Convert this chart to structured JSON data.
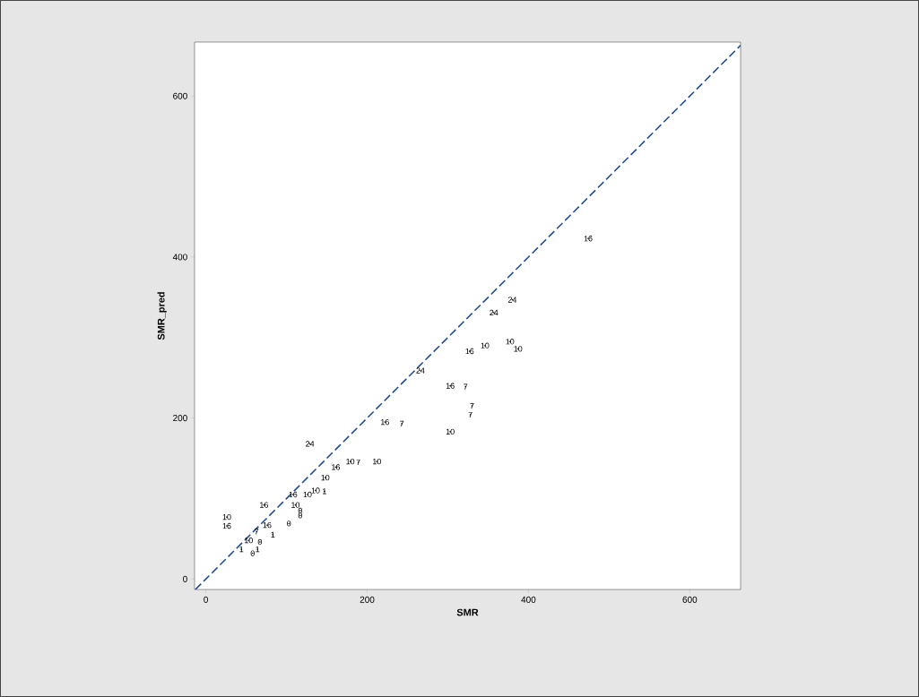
{
  "chart_data": {
    "type": "scatter",
    "xlabel": "SMR",
    "ylabel": "SMR_pred",
    "xlim": [
      -14,
      663
    ],
    "ylim": [
      -13,
      667
    ],
    "xticks": [
      0,
      200,
      400,
      600
    ],
    "yticks": [
      0,
      200,
      400,
      600
    ],
    "grid": false,
    "series": [
      {
        "type": "line",
        "color": "#1f4e96",
        "line_style": "dashed",
        "x": [
          -13,
          663
        ],
        "values": [
          -13,
          663
        ]
      },
      {
        "name": "16",
        "color": "#000000",
        "x": [
          474,
          327,
          303,
          222,
          161,
          108,
          72,
          26,
          76
        ],
        "values": [
          423,
          283,
          240,
          195,
          139,
          105,
          92,
          66,
          67
        ]
      },
      {
        "name": "24",
        "color": "#000000",
        "x": [
          380,
          357,
          266,
          129
        ],
        "values": [
          347,
          331,
          259,
          168
        ]
      },
      {
        "name": "10",
        "color": "#000000",
        "x": [
          346,
          377,
          387,
          303,
          179,
          212,
          148,
          126,
          136,
          111,
          26,
          53
        ],
        "values": [
          290,
          295,
          286,
          183,
          146,
          146,
          126,
          105,
          110,
          92,
          77,
          48
        ]
      },
      {
        "name": "7",
        "color": "#000000",
        "x": [
          322,
          330,
          328,
          243,
          189,
          63
        ],
        "values": [
          239,
          215,
          204,
          193,
          145,
          59
        ]
      },
      {
        "name": "1",
        "color": "#000000",
        "x": [
          147,
          83,
          44,
          64
        ],
        "values": [
          109,
          55,
          37,
          37
        ]
      },
      {
        "name": "0",
        "color": "#000000",
        "x": [
          117,
          117,
          103,
          67,
          58
        ],
        "values": [
          85,
          79,
          69,
          46,
          32
        ]
      }
    ]
  }
}
